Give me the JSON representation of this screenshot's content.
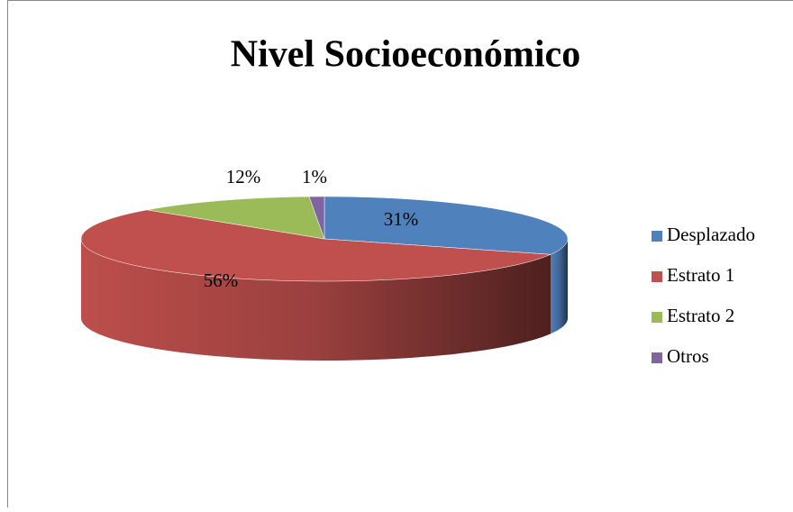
{
  "chart_data": {
    "type": "pie",
    "title": "Nivel Socioeconómico",
    "categories": [
      "Desplazado",
      "Estrato 1",
      "Estrato 2",
      "Otros"
    ],
    "values": [
      31,
      56,
      12,
      1
    ],
    "value_labels": [
      "31%",
      "56%",
      "12%",
      "1%"
    ],
    "colors": [
      "#4f81bd",
      "#c0504d",
      "#9bbb59",
      "#8064a2"
    ],
    "legend": "right"
  }
}
